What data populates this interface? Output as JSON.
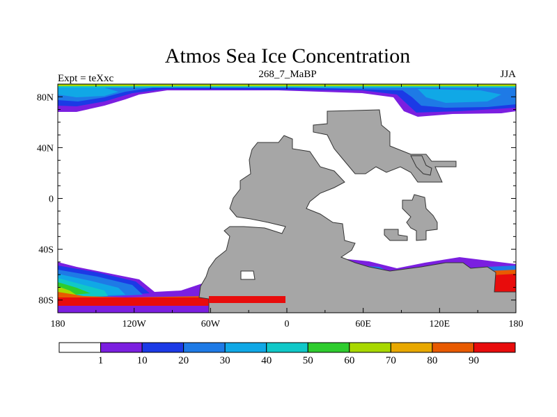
{
  "map": {
    "title": "Atmos Sea Ice Concentration",
    "left_label": "Expt = teXxc",
    "center_label": "268_7_MaBP",
    "right_label": "JJA",
    "lat_ticks": [
      "80N",
      "40N",
      "0",
      "40S",
      "80S"
    ],
    "lon_ticks": [
      "180",
      "120W",
      "60W",
      "0",
      "60E",
      "120E",
      "180"
    ],
    "land_color": "#a6a6a6",
    "ocean_color": "#ffffff"
  },
  "colorbar": {
    "labels": [
      "1",
      "10",
      "20",
      "30",
      "40",
      "50",
      "60",
      "70",
      "80",
      "90"
    ],
    "colors": [
      "#ffffff",
      "#7b1fe0",
      "#1b3ae6",
      "#1e7ae6",
      "#10a8e6",
      "#10c8c8",
      "#2ecc2e",
      "#a8d800",
      "#e8a800",
      "#e85a00",
      "#e80c0c"
    ]
  }
}
